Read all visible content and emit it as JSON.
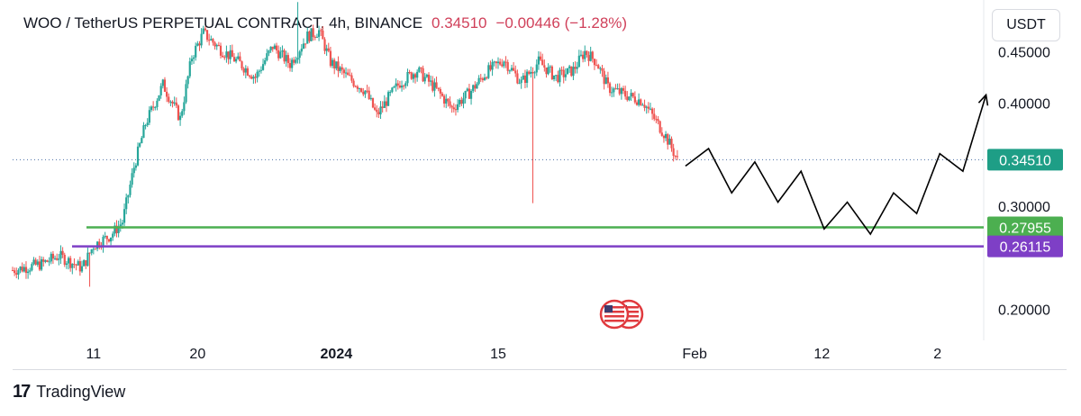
{
  "header": {
    "symbol": "WOO / TetherUS PERPETUAL CONTRACT, 4h, BINANCE",
    "last_price": "0.34510",
    "change": "−0.00446 (−1.28%)"
  },
  "currency_button": "USDT",
  "brand": {
    "name": "TradingView"
  },
  "colors": {
    "up": "#26a69a",
    "down": "#ef5350",
    "support": "#4caf50",
    "support_low": "#7e3fc6",
    "price_tag": "#1e9e86",
    "projection": "#000000"
  },
  "chart_data": {
    "type": "candlestick",
    "title": "WOO / TetherUS PERPETUAL CONTRACT, 4h, BINANCE",
    "y_ticks": [
      "0.45000",
      "0.40000",
      "0.30000",
      "0.20000"
    ],
    "y_tick_values": [
      0.45,
      0.4,
      0.3,
      0.2
    ],
    "ylim": [
      0.17,
      0.5
    ],
    "x_ticks": [
      "11",
      "20",
      "2024",
      "15",
      "Feb",
      "12",
      "2"
    ],
    "x_tick_days": [
      11,
      20,
      32,
      46,
      63,
      74,
      84
    ],
    "x_range_days": [
      4,
      88
    ],
    "x_axis_note": "days counted from 2023-12-01",
    "price_path": [
      [
        4.0,
        0.238
      ],
      [
        6.5,
        0.244
      ],
      [
        8.0,
        0.252
      ],
      [
        10.0,
        0.24
      ],
      [
        11.0,
        0.262
      ],
      [
        12.5,
        0.272
      ],
      [
        13.5,
        0.285
      ],
      [
        14.5,
        0.338
      ],
      [
        15.5,
        0.38
      ],
      [
        17.0,
        0.418
      ],
      [
        18.5,
        0.385
      ],
      [
        19.5,
        0.445
      ],
      [
        20.5,
        0.468
      ],
      [
        22.0,
        0.452
      ],
      [
        23.5,
        0.44
      ],
      [
        25.0,
        0.425
      ],
      [
        26.5,
        0.455
      ],
      [
        28.0,
        0.438
      ],
      [
        29.5,
        0.465
      ],
      [
        30.5,
        0.47
      ],
      [
        31.5,
        0.44
      ],
      [
        33.0,
        0.425
      ],
      [
        34.5,
        0.412
      ],
      [
        35.5,
        0.388
      ],
      [
        36.5,
        0.405
      ],
      [
        37.5,
        0.42
      ],
      [
        39.0,
        0.432
      ],
      [
        40.5,
        0.415
      ],
      [
        42.0,
        0.395
      ],
      [
        43.5,
        0.41
      ],
      [
        45.0,
        0.43
      ],
      [
        46.5,
        0.442
      ],
      [
        48.0,
        0.42
      ],
      [
        49.5,
        0.44
      ],
      [
        51.0,
        0.425
      ],
      [
        52.5,
        0.432
      ],
      [
        53.5,
        0.45
      ],
      [
        54.5,
        0.44
      ],
      [
        55.5,
        0.415
      ],
      [
        57.0,
        0.408
      ],
      [
        58.5,
        0.402
      ],
      [
        59.5,
        0.385
      ],
      [
        60.5,
        0.368
      ],
      [
        61.5,
        0.345
      ]
    ],
    "price_extremes": [
      {
        "day": 28.6,
        "high": 0.498
      },
      {
        "day": 49.0,
        "low": 0.303
      },
      {
        "day": 10.6,
        "low": 0.222
      }
    ],
    "horizontal_levels": [
      {
        "value": 0.3451,
        "label": "0.34510",
        "style": "dotted",
        "color": "#4a6fa5"
      },
      {
        "value": 0.27955,
        "label": "0.27955",
        "style": "solid",
        "color": "#4caf50"
      },
      {
        "value": 0.26115,
        "label": "0.26115",
        "style": "solid",
        "color": "#7e3fc6"
      }
    ],
    "projection_path": [
      [
        62.2,
        0.339
      ],
      [
        64.2,
        0.356
      ],
      [
        66.2,
        0.313
      ],
      [
        68.2,
        0.343
      ],
      [
        70.2,
        0.304
      ],
      [
        72.2,
        0.334
      ],
      [
        74.2,
        0.278
      ],
      [
        76.2,
        0.304
      ],
      [
        78.2,
        0.273
      ],
      [
        80.2,
        0.313
      ],
      [
        82.2,
        0.293
      ],
      [
        84.2,
        0.351
      ],
      [
        86.2,
        0.334
      ],
      [
        88.2,
        0.408
      ]
    ]
  }
}
